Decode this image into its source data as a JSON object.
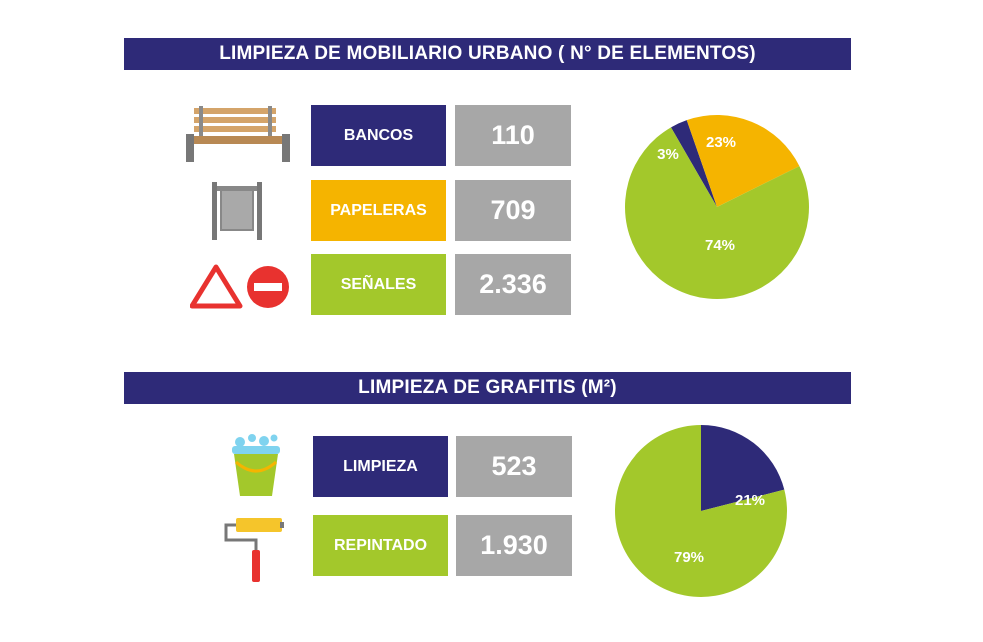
{
  "colors": {
    "navy": "#2e2a78",
    "orange": "#f5b400",
    "green": "#a3c82b",
    "gray": "#a7a7a7"
  },
  "section1": {
    "title": "LIMPIEZA DE MOBILIARIO URBANO ( N° DE ELEMENTOS)",
    "rows": [
      {
        "icon": "bench-icon",
        "label": "BANCOS",
        "value": "110",
        "color": "navy"
      },
      {
        "icon": "trash-bin-icon",
        "label": "PAPELERAS",
        "value": "709",
        "color": "orange"
      },
      {
        "icon": "traffic-signs-icon",
        "label": "SEÑALES",
        "value": "2.336",
        "color": "green"
      }
    ]
  },
  "section2": {
    "title": "LIMPIEZA DE GRAFITIS (M²)",
    "rows": [
      {
        "icon": "bucket-icon",
        "label": "LIMPIEZA",
        "value": "523",
        "color": "navy"
      },
      {
        "icon": "paint-roller-icon",
        "label": "REPINTADO",
        "value": "1.930",
        "color": "green"
      }
    ]
  },
  "chart_data": [
    {
      "type": "pie",
      "categories": [
        "BANCOS",
        "PAPELERAS",
        "SEÑALES"
      ],
      "values": [
        3,
        23,
        74
      ],
      "labels": [
        "3%",
        "23%",
        "74%"
      ],
      "colors": [
        "#2e2a78",
        "#f5b400",
        "#a3c82b"
      ]
    },
    {
      "type": "pie",
      "categories": [
        "LIMPIEZA",
        "REPINTADO"
      ],
      "values": [
        21,
        79
      ],
      "labels": [
        "21%",
        "79%"
      ],
      "colors": [
        "#2e2a78",
        "#a3c82b"
      ]
    }
  ]
}
